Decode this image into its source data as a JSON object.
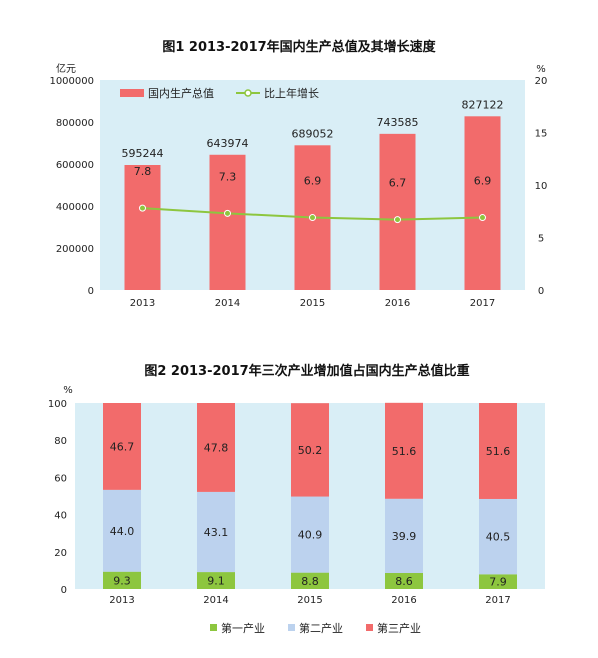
{
  "chart_data": [
    {
      "type": "bar+line",
      "title": "图1   2013-2017年国内生产总值及其增长速度",
      "categories": [
        "2013",
        "2014",
        "2015",
        "2016",
        "2017"
      ],
      "y_left_unit": "亿元",
      "y_right_unit": "%",
      "y_left_ticks": [
        "0",
        "200000",
        "400000",
        "600000",
        "800000",
        "1000000"
      ],
      "y_right_ticks": [
        "0",
        "5",
        "10",
        "15",
        "20"
      ],
      "ylim_left": [
        0,
        1000000
      ],
      "ylim_right": [
        0,
        20
      ],
      "series": [
        {
          "name": "国内生产总值",
          "type": "bar",
          "color": "#f26b6b",
          "values": [
            595244,
            643974,
            689052,
            743585,
            827122
          ],
          "labels": [
            "595244",
            "643974",
            "689052",
            "743585",
            "827122"
          ]
        },
        {
          "name": "比上年增长",
          "type": "line",
          "color": "#8dc63f",
          "values": [
            7.8,
            7.3,
            6.9,
            6.7,
            6.9
          ],
          "labels": [
            "7.8",
            "7.3",
            "6.9",
            "6.7",
            "6.9"
          ]
        }
      ],
      "background": "#d9eef6"
    },
    {
      "type": "stacked_bar",
      "title": "图2   2013-2017年三次产业增加值占国内生产总值比重",
      "categories": [
        "2013",
        "2014",
        "2015",
        "2016",
        "2017"
      ],
      "y_unit": "%",
      "y_ticks": [
        "0",
        "20",
        "40",
        "60",
        "80",
        "100"
      ],
      "ylim": [
        0,
        100
      ],
      "series": [
        {
          "name": "第一产业",
          "color": "#8dc63f",
          "values": [
            9.3,
            9.1,
            8.8,
            8.6,
            7.9
          ],
          "labels": [
            "9.3",
            "9.1",
            "8.8",
            "8.6",
            "7.9"
          ]
        },
        {
          "name": "第二产业",
          "color": "#bcd2ee",
          "values": [
            44.0,
            43.1,
            40.9,
            39.9,
            40.5
          ],
          "labels": [
            "44.0",
            "43.1",
            "40.9",
            "39.9",
            "40.5"
          ]
        },
        {
          "name": "第三产业",
          "color": "#f26b6b",
          "values": [
            46.7,
            47.8,
            50.2,
            51.6,
            51.6
          ],
          "labels": [
            "46.7",
            "47.8",
            "50.2",
            "51.6",
            "51.6"
          ]
        }
      ],
      "background": "#d9eef6"
    }
  ]
}
